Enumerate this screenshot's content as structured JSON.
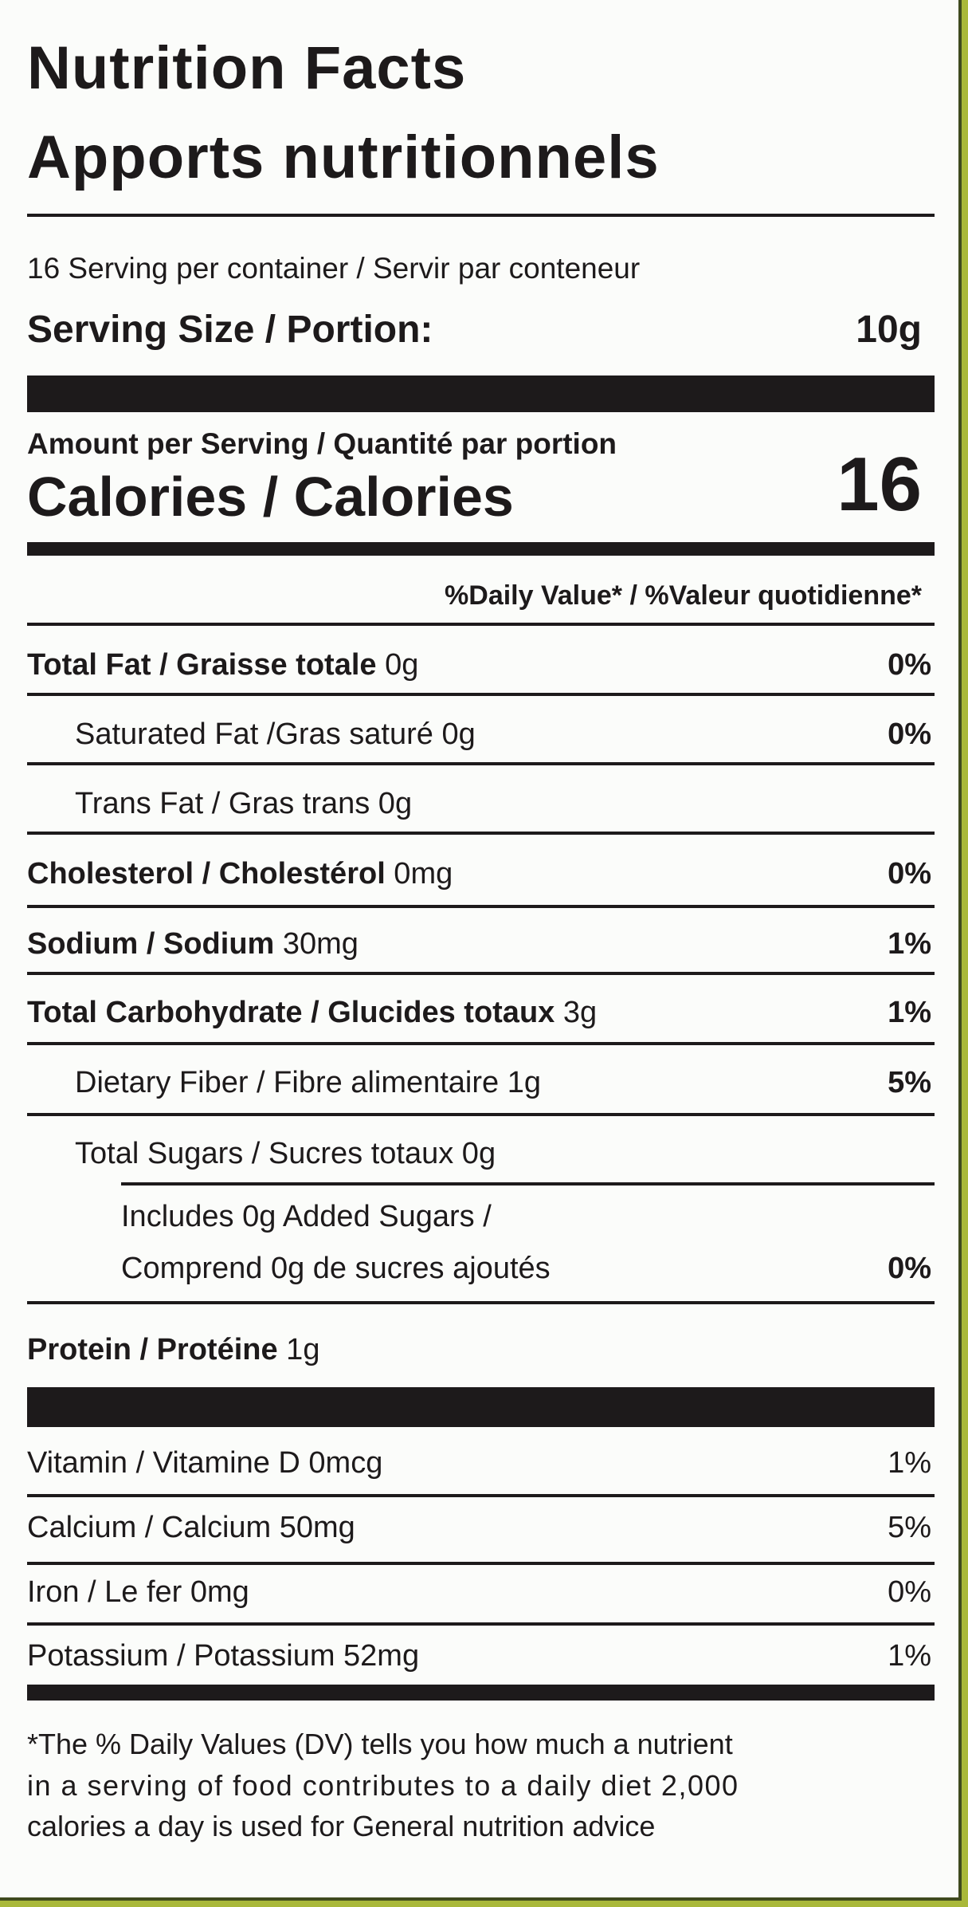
{
  "header": {
    "title_en": "Nutrition Facts",
    "title_fr": "Apports nutritionnels"
  },
  "servings": {
    "per_container": "16 Serving per container / Servir par conteneur",
    "size_label": "Serving Size / Portion:",
    "size_value": "10g"
  },
  "calories": {
    "amount_label": "Amount per Serving / Quantité par portion",
    "label": "Calories / Calories",
    "value": "16"
  },
  "daily_value_header": "%Daily Value* / %Valeur quotidienne*",
  "nutrients": [
    {
      "name": "Total Fat / Graisse totale",
      "amount": " 0g",
      "dv": "0%"
    },
    {
      "name": "Saturated Fat /Gras saturé",
      "amount": " 0g",
      "dv": "0%"
    },
    {
      "name": "Trans Fat / Gras trans",
      "amount": " 0g",
      "dv": ""
    },
    {
      "name": "Cholesterol / Cholestérol",
      "amount": " 0mg",
      "dv": "0%"
    },
    {
      "name": "Sodium / Sodium",
      "amount": " 30mg",
      "dv": "1%"
    },
    {
      "name": "Total Carbohydrate / Glucides totaux",
      "amount": " 3g",
      "dv": "1%"
    },
    {
      "name": "Dietary Fiber /  Fibre alimentaire",
      "amount": " 1g",
      "dv": "5%"
    },
    {
      "name": "Total Sugars / Sucres totaux",
      "amount": " 0g",
      "dv": ""
    },
    {
      "name_line1": "Includes 0g Added Sugars /",
      "name_line2": "Comprend 0g de sucres ajoutés",
      "dv": "0%"
    },
    {
      "name": "Protein / Protéine",
      "amount": " 1g",
      "dv": ""
    }
  ],
  "vitamins": [
    {
      "name": "Vitamin / Vitamine D 0mcg",
      "dv": "1%"
    },
    {
      "name": "Calcium / Calcium 50mg",
      "dv": "5%"
    },
    {
      "name": "Iron / Le fer 0mg",
      "dv": "0%"
    },
    {
      "name": "Potassium / Potassium 52mg",
      "dv": "1%"
    }
  ],
  "footnote": {
    "line1": "*The % Daily Values (DV) tells you how much a nutrient",
    "line2": "in a serving of food contributes to a daily diet 2,000",
    "line3": "calories a day is used for General nutrition advice"
  },
  "colors": {
    "background": "#fbfcfa",
    "ink": "#1d1a1b",
    "package": "#a9b83a"
  }
}
